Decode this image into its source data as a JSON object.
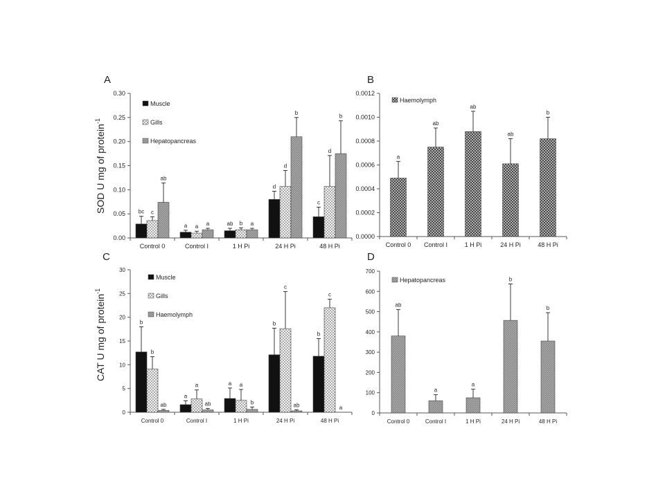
{
  "chart_data": [
    {
      "panel": "A",
      "type": "bar",
      "ylabel": "SOD U mg of protein",
      "ylabel_sup": "-1",
      "ylim": [
        0,
        0.3
      ],
      "yticks": [
        "0.00",
        "0.05",
        "0.10",
        "0.15",
        "0.20",
        "0.25",
        "0.30"
      ],
      "categories": [
        "Control 0",
        "Control I",
        "1 H Pi",
        "24 H Pi",
        "48 H Pi"
      ],
      "legend_position": "top-left",
      "grid": false,
      "series": [
        {
          "name": "Muscle",
          "pattern": "black",
          "values": [
            0.029,
            0.012,
            0.015,
            0.08,
            0.044
          ],
          "errors": [
            0.016,
            0.004,
            0.005,
            0.017,
            0.02
          ],
          "letters": [
            "bc",
            "a",
            "ab",
            "d",
            "c"
          ]
        },
        {
          "name": "Gills",
          "pattern": "dots",
          "values": [
            0.036,
            0.01,
            0.017,
            0.107,
            0.107
          ],
          "errors": [
            0.008,
            0.004,
            0.004,
            0.033,
            0.064
          ],
          "letters": [
            "c",
            "a",
            "b",
            "d",
            "d"
          ]
        },
        {
          "name": "Hepatopancreas",
          "pattern": "hatch",
          "values": [
            0.074,
            0.017,
            0.017,
            0.21,
            0.175
          ],
          "errors": [
            0.04,
            0.003,
            0.003,
            0.04,
            0.068
          ],
          "letters": [
            "ab",
            "a",
            "a",
            "b",
            "b"
          ]
        }
      ]
    },
    {
      "panel": "B",
      "type": "bar",
      "ylabel": "",
      "ylim": [
        0,
        0.0012
      ],
      "yticks": [
        "0.0000",
        "0.0002",
        "0.0004",
        "0.0006",
        "0.0008",
        "0.0010",
        "0.0012"
      ],
      "categories": [
        "Control 0",
        "Control I",
        "1 H Pi",
        "24 H Pi",
        "48 H Pi"
      ],
      "legend_position": "top-left",
      "grid": false,
      "series": [
        {
          "name": "Haemolymph",
          "pattern": "cross",
          "values": [
            0.00049,
            0.00075,
            0.00088,
            0.00061,
            0.00082
          ],
          "errors": [
            0.00014,
            0.00016,
            0.00017,
            0.00021,
            0.00018
          ],
          "letters": [
            "a",
            "ab",
            "ab",
            "ab",
            "b"
          ]
        }
      ]
    },
    {
      "panel": "C",
      "type": "bar",
      "ylabel": "CAT U mg of protein",
      "ylabel_sup": "-1",
      "ylim": [
        0,
        30
      ],
      "yticks": [
        "0",
        "5",
        "10",
        "15",
        "20",
        "25",
        "30"
      ],
      "categories": [
        "Control 0",
        "Control I",
        "1 H Pi",
        "24 H Pi",
        "48 H Pi"
      ],
      "legend_position": "top-left",
      "grid": false,
      "series": [
        {
          "name": "Muscle",
          "pattern": "black",
          "values": [
            12.7,
            1.6,
            2.9,
            12.1,
            11.8
          ],
          "errors": [
            5.3,
            0.8,
            2.2,
            5.6,
            3.7
          ],
          "letters": [
            "b",
            "a",
            "a",
            "b",
            "b"
          ]
        },
        {
          "name": "Gills",
          "pattern": "dots",
          "values": [
            9.1,
            2.8,
            2.5,
            17.6,
            22.0
          ],
          "errors": [
            2.6,
            1.9,
            2.3,
            7.8,
            1.8
          ],
          "letters": [
            "b",
            "a",
            "a",
            "c",
            "c"
          ]
        },
        {
          "name": "Haemolymph",
          "pattern": "hatch",
          "values": [
            0.4,
            0.5,
            0.6,
            0.3,
            0.0
          ],
          "errors": [
            0.2,
            0.3,
            0.5,
            0.2,
            0.0
          ],
          "letters": [
            "ab",
            "ab",
            "b",
            "ab",
            "a"
          ]
        }
      ]
    },
    {
      "panel": "D",
      "type": "bar",
      "ylabel": "",
      "ylim": [
        0,
        700
      ],
      "yticks": [
        "0",
        "100",
        "200",
        "300",
        "400",
        "500",
        "600",
        "700"
      ],
      "categories": [
        "Control 0",
        "Control I",
        "1 H Pi",
        "24 H Pi",
        "48 H Pi"
      ],
      "legend_position": "top-left",
      "grid": false,
      "series": [
        {
          "name": "Hepatopancreas",
          "pattern": "hatch",
          "values": [
            380,
            60,
            75,
            457,
            355
          ],
          "errors": [
            130,
            30,
            42,
            180,
            140
          ],
          "letters": [
            "ab",
            "a",
            "a",
            "b",
            "b"
          ]
        }
      ]
    }
  ]
}
